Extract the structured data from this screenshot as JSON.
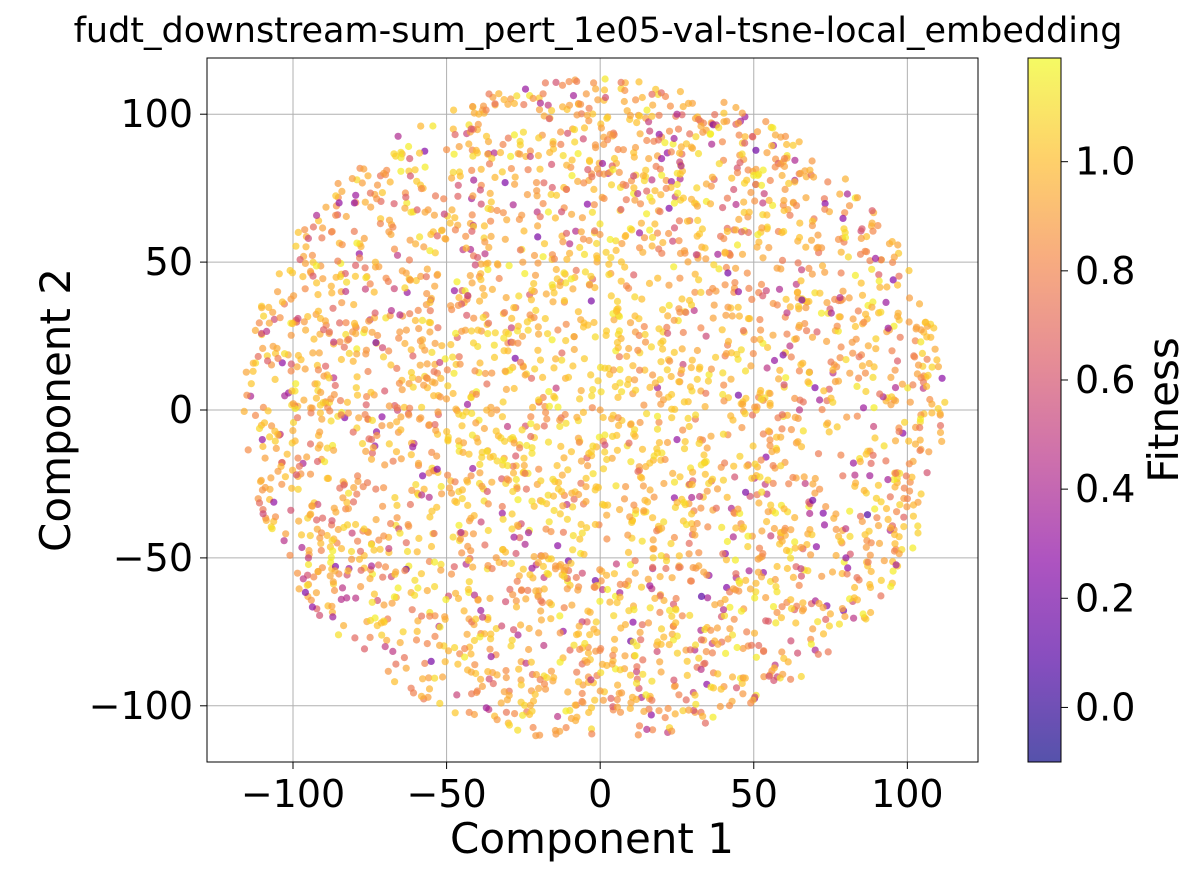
{
  "chart_data": {
    "type": "scatter",
    "title": "fudt_downstream-sum_pert_1e05-val-tsne-local_embedding",
    "xlabel": "Component 1",
    "ylabel": "Component 2",
    "xlim": [
      -128,
      123
    ],
    "ylim": [
      -119,
      119
    ],
    "xticks": [
      -100,
      -50,
      0,
      50,
      100
    ],
    "yticks": [
      -100,
      -50,
      0,
      50,
      100
    ],
    "xtick_labels": [
      "−100",
      "−50",
      "0",
      "50",
      "100"
    ],
    "ytick_labels": [
      "−100",
      "−50",
      "0",
      "50",
      "100"
    ],
    "grid": true,
    "legend": "none",
    "colormap": "plasma",
    "point_alpha": 0.7,
    "colorbar": {
      "label": "Fitness",
      "range": [
        -0.1,
        1.19
      ],
      "ticks": [
        0.0,
        0.2,
        0.4,
        0.6,
        0.8,
        1.0
      ],
      "tick_labels": [
        "0.0",
        "0.2",
        "0.4",
        "0.6",
        "0.8",
        "1.0"
      ]
    },
    "sample_points": [
      {
        "x": -115,
        "y": 5,
        "c": 0.85
      },
      {
        "x": -110,
        "y": -10,
        "c": 0.3
      },
      {
        "x": -105,
        "y": 40,
        "c": 0.9
      },
      {
        "x": -95,
        "y": 58,
        "c": 0.55
      },
      {
        "x": -95,
        "y": -50,
        "c": 0.5
      },
      {
        "x": -80,
        "y": 70,
        "c": 0.3
      },
      {
        "x": -70,
        "y": -80,
        "c": 0.5
      },
      {
        "x": -62,
        "y": 85,
        "c": 0.6
      },
      {
        "x": -50,
        "y": 88,
        "c": 0.85
      },
      {
        "x": -42,
        "y": 95,
        "c": 0.6
      },
      {
        "x": -40,
        "y": -95,
        "c": 0.8
      },
      {
        "x": -20,
        "y": 92,
        "c": 1.05
      },
      {
        "x": -10,
        "y": 103,
        "c": 0.9
      },
      {
        "x": -8,
        "y": -105,
        "c": 0.95
      },
      {
        "x": 0,
        "y": -95,
        "c": 0.9
      },
      {
        "x": 8,
        "y": 108,
        "c": 0.85
      },
      {
        "x": 25,
        "y": 100,
        "c": 0.4
      },
      {
        "x": 28,
        "y": -98,
        "c": 0.7
      },
      {
        "x": 45,
        "y": 97,
        "c": 0.9
      },
      {
        "x": 55,
        "y": -90,
        "c": 0.6
      },
      {
        "x": 60,
        "y": 85,
        "c": 0.8
      },
      {
        "x": 78,
        "y": 73,
        "c": 0.95
      },
      {
        "x": 80,
        "y": -50,
        "c": 0.3
      },
      {
        "x": 85,
        "y": 58,
        "c": 0.9
      },
      {
        "x": 88,
        "y": -60,
        "c": 1.0
      },
      {
        "x": 95,
        "y": 20,
        "c": 0.8
      },
      {
        "x": 100,
        "y": -30,
        "c": 0.8
      },
      {
        "x": 103,
        "y": 28,
        "c": 0.9
      },
      {
        "x": 108,
        "y": 2,
        "c": 0.95
      },
      {
        "x": 45,
        "y": 40,
        "c": 0.3
      },
      {
        "x": 45,
        "y": 5,
        "c": 0.2
      },
      {
        "x": 25,
        "y": -10,
        "c": 0.3
      },
      {
        "x": 33,
        "y": -63,
        "c": 0.1
      },
      {
        "x": 20,
        "y": 85,
        "c": 0.3
      },
      {
        "x": -85,
        "y": 70,
        "c": 0.3
      },
      {
        "x": -55,
        "y": -85,
        "c": 0.2
      },
      {
        "x": 0,
        "y": 0,
        "c": 0.9
      },
      {
        "x": -30,
        "y": 20,
        "c": 1.0
      },
      {
        "x": 20,
        "y": -40,
        "c": 0.95
      },
      {
        "x": -20,
        "y": -20,
        "c": 0.85
      }
    ]
  }
}
